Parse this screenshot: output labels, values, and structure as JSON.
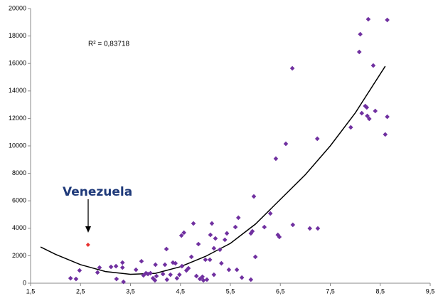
{
  "chart_data": {
    "type": "scatter",
    "annotation": "R² = 0,83718",
    "series": [
      {
        "color": "#7030a0",
        "x": [
          2.3,
          2.41,
          2.48,
          2.84,
          2.88,
          3.11,
          3.21,
          3.22,
          3.34,
          3.34,
          3.36,
          3.61,
          3.72,
          3.76,
          3.81,
          3.85,
          3.9,
          3.95,
          3.99,
          4.0,
          4.02,
          4.15,
          4.19,
          4.22,
          4.23,
          4.3,
          4.35,
          4.4,
          4.43,
          4.48,
          4.52,
          4.53,
          4.57,
          4.62,
          4.66,
          4.72,
          4.76,
          4.82,
          4.86,
          4.89,
          4.94,
          4.96,
          5.0,
          5.03,
          5.09,
          5.1,
          5.13,
          5.17,
          5.17,
          5.2,
          5.29,
          5.32,
          5.39,
          5.43,
          5.47,
          5.6,
          5.63,
          5.66,
          5.73,
          5.91,
          5.94,
          5.97,
          6.0,
          5.91,
          6.18,
          6.3,
          6.41,
          6.45,
          6.48,
          6.61,
          6.74,
          6.75,
          7.09,
          7.24,
          7.25,
          7.91,
          8.08,
          8.1,
          8.13,
          8.2,
          8.23,
          8.24,
          8.26,
          8.28,
          8.36,
          8.4,
          8.6,
          8.64,
          8.64
        ],
        "values": [
          360,
          310,
          930,
          780,
          1140,
          1190,
          1240,
          310,
          1500,
          1140,
          100,
          980,
          1600,
          570,
          730,
          670,
          730,
          360,
          210,
          1350,
          520,
          670,
          1350,
          2490,
          260,
          620,
          1500,
          1450,
          360,
          620,
          3470,
          1240,
          3680,
          930,
          1090,
          1920,
          4350,
          520,
          2850,
          310,
          470,
          210,
          1710,
          260,
          1710,
          3520,
          4350,
          2540,
          620,
          3260,
          2440,
          1450,
          3160,
          3630,
          980,
          4090,
          980,
          4770,
          410,
          3630,
          3780,
          6320,
          1920,
          260,
          4090,
          5080,
          9070,
          3520,
          3370,
          10150,
          15650,
          4250,
          3990,
          10520,
          3990,
          11350,
          16840,
          18130,
          12380,
          12900,
          12800,
          12180,
          19220,
          11970,
          15850,
          12540,
          10830,
          19170,
          12120
        ]
      }
    ],
    "highlight": {
      "label": "Venezuela",
      "x": 2.65,
      "value": 2800,
      "color": "#e8312f"
    },
    "trendline": {
      "color": "#000000",
      "x": [
        1.7,
        2.0,
        2.5,
        3.0,
        3.5,
        4.0,
        4.5,
        5.0,
        5.5,
        6.0,
        6.5,
        7.0,
        7.5,
        8.0,
        8.6
      ],
      "values": [
        2640,
        2100,
        1350,
        850,
        650,
        720,
        1200,
        1950,
        2900,
        4300,
        6100,
        7900,
        10000,
        12400,
        15800
      ]
    },
    "xlim": [
      1.5,
      9.5
    ],
    "xticks": [
      {
        "value": 1.5,
        "label": "1,5"
      },
      {
        "value": 2.5,
        "label": "2,5"
      },
      {
        "value": 3.5,
        "label": "3,5"
      },
      {
        "value": 4.5,
        "label": "4,5"
      },
      {
        "value": 5.5,
        "label": "5,5"
      },
      {
        "value": 6.5,
        "label": "6,5"
      },
      {
        "value": 7.5,
        "label": "7,5"
      },
      {
        "value": 8.5,
        "label": "8,5"
      },
      {
        "value": 9.5,
        "label": "9,5"
      }
    ],
    "ylim": [
      0,
      20000
    ],
    "yticks": [
      0,
      2000,
      4000,
      6000,
      8000,
      10000,
      12000,
      14000,
      16000,
      18000,
      20000
    ]
  }
}
